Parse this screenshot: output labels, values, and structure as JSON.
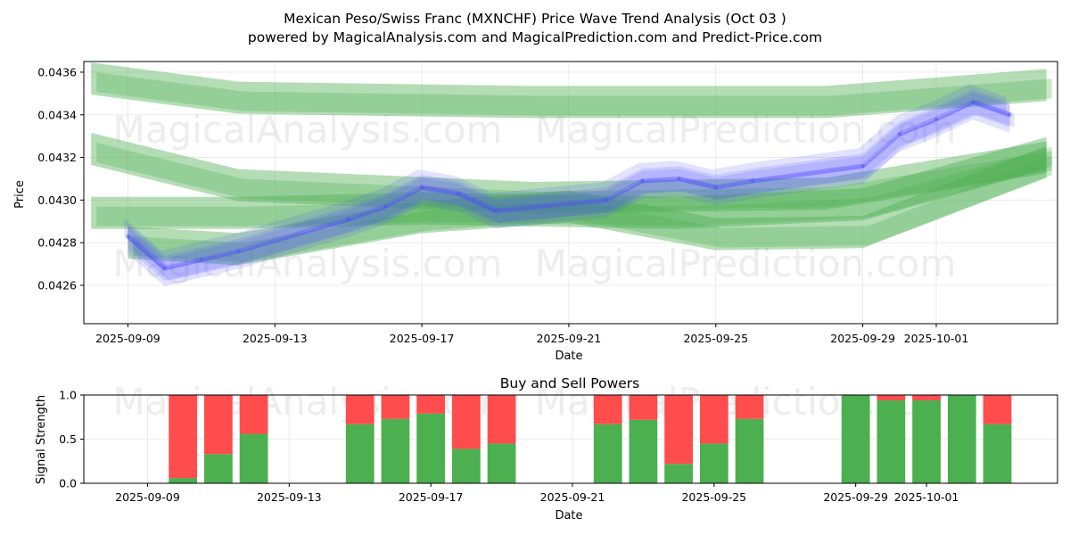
{
  "figure": {
    "title_line1": "Mexican Peso/Swiss Franc (MXNCHF) Price Wave Trend Analysis (Oct 03 )",
    "title_line2": "powered by MagicalAnalysis.com and MagicalPrediction.com and Predict-Price.com",
    "watermarks": [
      "MagicalAnalysis.com",
      "MagicalPrediction.com"
    ]
  },
  "chart_data": [
    {
      "type": "line",
      "panel": "price",
      "title": "",
      "xlabel": "Date",
      "ylabel": "Price",
      "x_ticks": [
        "2025-09-09",
        "2025-09-13",
        "2025-09-17",
        "2025-09-21",
        "2025-09-25",
        "2025-09-29",
        "2025-10-01"
      ],
      "y_ticks": [
        "0.0426",
        "0.0428",
        "0.0430",
        "0.0432",
        "0.0434",
        "0.0436"
      ],
      "xlim": [
        "2025-09-07.8",
        "2025-10-04.3"
      ],
      "ylim": [
        0.04242,
        0.04365
      ],
      "grid": true,
      "series": [
        {
          "color": "#4a4aff",
          "x": [
            "2025-09-09",
            "2025-09-10",
            "2025-09-11",
            "2025-09-12",
            "2025-09-15",
            "2025-09-16",
            "2025-09-17",
            "2025-09-18",
            "2025-09-19",
            "2025-09-22",
            "2025-09-23",
            "2025-09-24",
            "2025-09-25",
            "2025-09-26",
            "2025-09-29",
            "2025-09-30",
            "2025-10-01",
            "2025-10-02",
            "2025-10-03"
          ],
          "y": [
            0.04283,
            0.04268,
            0.04272,
            0.04276,
            0.04291,
            0.04297,
            0.04306,
            0.04303,
            0.04295,
            0.043,
            0.04309,
            0.0431,
            0.04306,
            0.04309,
            0.04316,
            0.04331,
            0.04338,
            0.04346,
            0.0434
          ]
        }
      ],
      "green_bands": [
        {
          "x": [
            "2025-09-08",
            "2025-09-12",
            "2025-09-20",
            "2025-09-28",
            "2025-10-04"
          ],
          "y": [
            0.04357,
            0.04348,
            0.04346,
            0.04346,
            0.04354
          ],
          "color": "#4caf50"
        },
        {
          "x": [
            "2025-09-08",
            "2025-09-12",
            "2025-09-16",
            "2025-09-20",
            "2025-09-28",
            "2025-10-04"
          ],
          "y": [
            0.04324,
            0.04307,
            0.04304,
            0.04301,
            0.04303,
            0.0432
          ],
          "color": "#4caf50"
        },
        {
          "x": [
            "2025-09-08",
            "2025-09-12",
            "2025-09-17",
            "2025-09-24",
            "2025-09-29",
            "2025-10-04"
          ],
          "y": [
            0.04294,
            0.04294,
            0.04296,
            0.04294,
            0.04298,
            0.04322
          ],
          "color": "#4caf50"
        },
        {
          "x": [
            "2025-09-09",
            "2025-09-12",
            "2025-09-17",
            "2025-09-21",
            "2025-09-25",
            "2025-09-29",
            "2025-10-04"
          ],
          "y": [
            0.0428,
            0.04277,
            0.04292,
            0.04297,
            0.04284,
            0.04285,
            0.04318
          ],
          "color": "#4caf50"
        }
      ]
    },
    {
      "type": "bar",
      "panel": "signal",
      "title": "Buy and Sell Powers",
      "xlabel": "Date",
      "ylabel": "Signal Strength",
      "x_ticks": [
        "2025-09-09",
        "2025-09-13",
        "2025-09-17",
        "2025-09-21",
        "2025-09-25",
        "2025-09-29",
        "2025-10-01"
      ],
      "y_ticks": [
        "0.0",
        "0.5",
        "1.0"
      ],
      "ylim": [
        0,
        1
      ],
      "categories": [
        "2025-09-10",
        "2025-09-11",
        "2025-09-12",
        "2025-09-15",
        "2025-09-16",
        "2025-09-17",
        "2025-09-18",
        "2025-09-19",
        "2025-09-22",
        "2025-09-23",
        "2025-09-24",
        "2025-09-25",
        "2025-09-26",
        "2025-09-29",
        "2025-09-30",
        "2025-10-01",
        "2025-10-02",
        "2025-10-03"
      ],
      "series": [
        {
          "color": "#4caf50",
          "values": [
            0.06,
            0.33,
            0.56,
            0.67,
            0.73,
            0.79,
            0.39,
            0.45,
            0.67,
            0.72,
            0.22,
            0.45,
            0.73,
            1.0,
            0.94,
            0.94,
            1.0,
            0.67
          ]
        },
        {
          "color": "#ff4c4c",
          "values": [
            0.94,
            0.67,
            0.44,
            0.33,
            0.27,
            0.21,
            0.61,
            0.55,
            0.33,
            0.28,
            0.78,
            0.55,
            0.27,
            0.0,
            0.06,
            0.06,
            0.0,
            0.33
          ]
        }
      ]
    }
  ]
}
